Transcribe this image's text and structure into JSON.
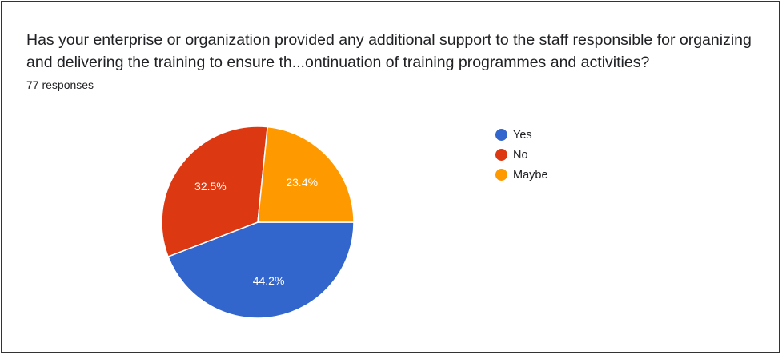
{
  "title": "Has your enterprise or organization provided any additional support to the staff responsible for organizing and delivering the training to ensure th...ontinuation of training programmes and activities?",
  "responses": "77 responses",
  "chart_data": {
    "type": "pie",
    "title": "Has your enterprise or organization provided any additional support to the staff responsible for organizing and delivering the training to ensure th...ontinuation of training programmes and activities?",
    "categories": [
      "Yes",
      "No",
      "Maybe"
    ],
    "values": [
      44.2,
      32.5,
      23.4
    ],
    "labels": [
      "44.2%",
      "32.5%",
      "23.4%"
    ],
    "colors": [
      "#3366cc",
      "#dc3912",
      "#ff9900"
    ],
    "legend": "right"
  }
}
